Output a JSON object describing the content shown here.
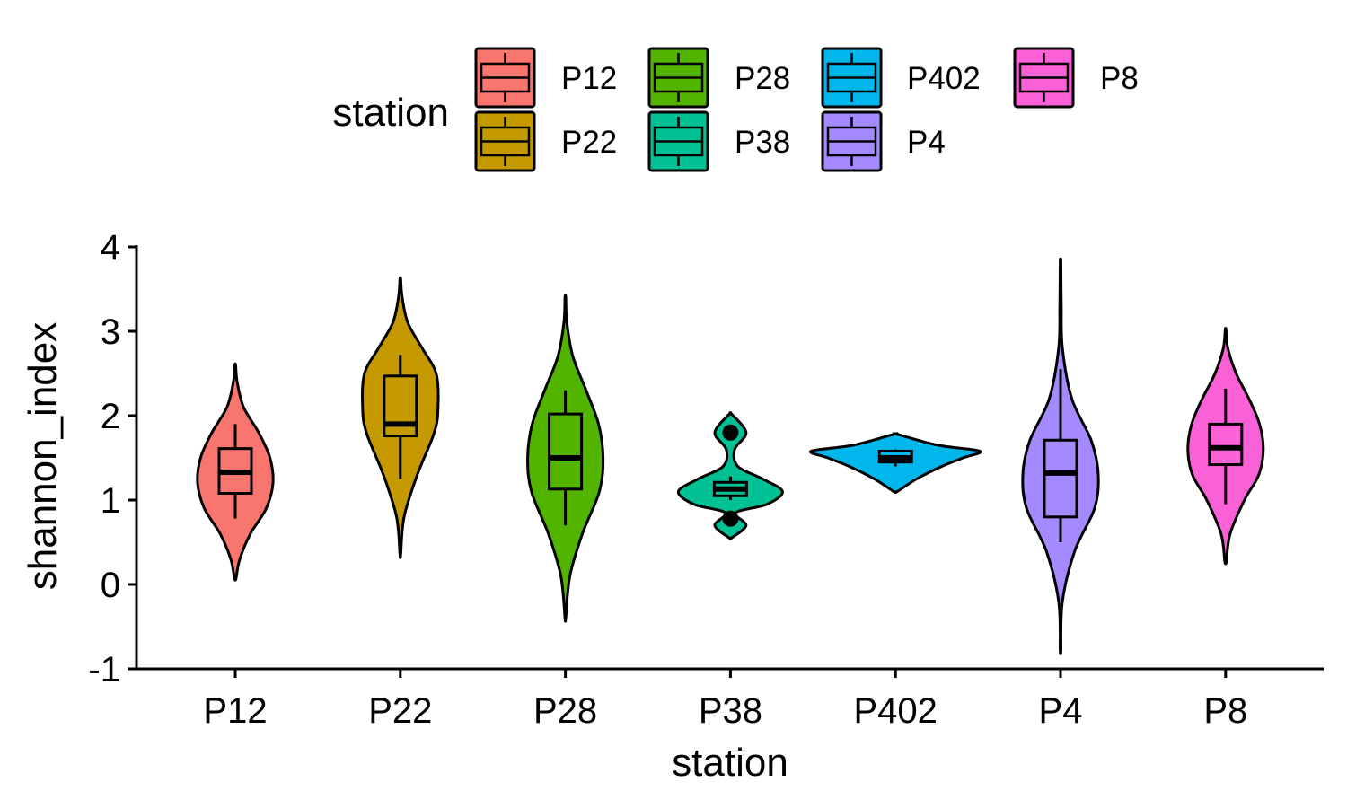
{
  "chart_data": {
    "type": "violin",
    "xlabel": "station",
    "ylabel": "shannon_index",
    "ylim": [
      -1,
      4
    ],
    "yticks": [
      -1,
      0,
      1,
      2,
      3,
      4
    ],
    "categories": [
      "P12",
      "P22",
      "P28",
      "P38",
      "P402",
      "P4",
      "P8"
    ],
    "legend": {
      "title": "station",
      "placement": "top",
      "entries": [
        {
          "label": "P12",
          "color": "#F8766D"
        },
        {
          "label": "P22",
          "color": "#C49A00"
        },
        {
          "label": "P28",
          "color": "#53B400"
        },
        {
          "label": "P38",
          "color": "#00C094"
        },
        {
          "label": "P402",
          "color": "#00B6EB"
        },
        {
          "label": "P4",
          "color": "#A58AFF"
        },
        {
          "label": "P8",
          "color": "#FB61D7"
        }
      ]
    },
    "series": [
      {
        "station": "P12",
        "color": "#F8766D",
        "box": {
          "min": 0.78,
          "q1": 1.08,
          "median": 1.33,
          "q3": 1.61,
          "max": 1.9
        },
        "violin": {
          "y": [
            0.07,
            0.3,
            0.6,
            0.9,
            1.2,
            1.5,
            1.8,
            2.1,
            2.4,
            2.6
          ],
          "w": [
            0.02,
            0.12,
            0.4,
            0.82,
            1.0,
            0.92,
            0.62,
            0.22,
            0.05,
            0.01
          ]
        }
      },
      {
        "station": "P22",
        "color": "#C49A00",
        "box": {
          "min": 1.25,
          "q1": 1.76,
          "median": 1.9,
          "q3": 2.47,
          "max": 2.72
        },
        "violin": {
          "y": [
            0.35,
            0.8,
            1.3,
            1.8,
            2.1,
            2.5,
            2.8,
            3.1,
            3.4,
            3.62
          ],
          "w": [
            0.01,
            0.1,
            0.45,
            0.9,
            1.0,
            0.95,
            0.58,
            0.2,
            0.05,
            0.01
          ]
        }
      },
      {
        "station": "P28",
        "color": "#53B400",
        "box": {
          "min": 0.7,
          "q1": 1.13,
          "median": 1.5,
          "q3": 2.02,
          "max": 2.3
        },
        "violin": {
          "y": [
            -0.4,
            0.1,
            0.6,
            1.1,
            1.5,
            1.9,
            2.3,
            2.7,
            3.1,
            3.4
          ],
          "w": [
            0.01,
            0.12,
            0.45,
            0.9,
            1.0,
            0.88,
            0.55,
            0.2,
            0.04,
            0.01
          ]
        }
      },
      {
        "station": "P38",
        "color": "#00C094",
        "box": {
          "min": 1.0,
          "q1": 1.05,
          "median": 1.13,
          "q3": 1.21,
          "max": 1.28
        },
        "outliers": [
          1.8,
          0.78
        ],
        "violin": {
          "y": [
            0.55,
            0.7,
            0.85,
            0.95,
            1.1,
            1.25,
            1.4,
            1.6,
            1.8,
            2.02
          ],
          "w": [
            0.02,
            0.3,
            0.1,
            0.7,
            1.0,
            0.62,
            0.14,
            0.08,
            0.3,
            0.02
          ]
        }
      },
      {
        "station": "P402",
        "color": "#00B6EB",
        "box": {
          "min": 1.4,
          "q1": 1.45,
          "median": 1.5,
          "q3": 1.58,
          "max": 1.6
        },
        "violin": {
          "y": [
            1.1,
            1.25,
            1.4,
            1.5,
            1.58,
            1.65,
            1.78
          ],
          "w": [
            0.02,
            0.25,
            0.55,
            0.8,
            1.0,
            0.5,
            0.02
          ]
        }
      },
      {
        "station": "P4",
        "color": "#A58AFF",
        "box": {
          "min": 0.5,
          "q1": 0.8,
          "median": 1.32,
          "q3": 1.71,
          "max": 2.55
        },
        "violin": {
          "y": [
            -0.78,
            -0.2,
            0.4,
            0.9,
            1.3,
            1.7,
            2.2,
            2.8,
            3.3,
            3.82
          ],
          "w": [
            0.01,
            0.05,
            0.38,
            0.9,
            1.0,
            0.82,
            0.3,
            0.05,
            0.02,
            0.01
          ]
        }
      },
      {
        "station": "P8",
        "color": "#FB61D7",
        "box": {
          "min": 0.95,
          "q1": 1.42,
          "median": 1.62,
          "q3": 1.9,
          "max": 2.32
        },
        "violin": {
          "y": [
            0.27,
            0.6,
            1.0,
            1.3,
            1.6,
            1.9,
            2.2,
            2.5,
            2.8,
            3.02
          ],
          "w": [
            0.02,
            0.12,
            0.5,
            0.88,
            1.0,
            0.9,
            0.62,
            0.28,
            0.06,
            0.01
          ]
        }
      }
    ]
  }
}
